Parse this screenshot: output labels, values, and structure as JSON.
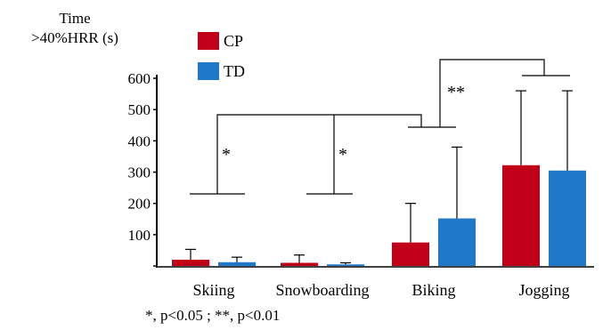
{
  "chart_data": {
    "type": "bar",
    "ylabel_line1": "Time",
    "ylabel_line2": ">40%HRR (s)",
    "ylim": [
      0,
      600
    ],
    "yticks": [
      "0",
      "100",
      "200",
      "300",
      "400",
      "500",
      "600"
    ],
    "categories": [
      "Skiing",
      "Snowboarding",
      "Biking",
      "Jogging"
    ],
    "series": [
      {
        "name": "CP",
        "color": "#c00018",
        "values": [
          20,
          10,
          75,
          322
        ],
        "error": [
          33,
          25,
          125,
          238
        ]
      },
      {
        "name": "TD",
        "color": "#1f78c8",
        "values": [
          12,
          5,
          152,
          305
        ],
        "error": [
          16,
          5,
          228,
          255
        ]
      }
    ],
    "legend_position": "top-left",
    "significance": [
      {
        "label": "*",
        "compare": "Skiing vs Biking"
      },
      {
        "label": "*",
        "compare": "Snowboarding vs Biking"
      },
      {
        "label": "**",
        "compare": "Biking vs Jogging"
      }
    ],
    "footnote": "*, p<0.05 ; **, p<0.01"
  }
}
